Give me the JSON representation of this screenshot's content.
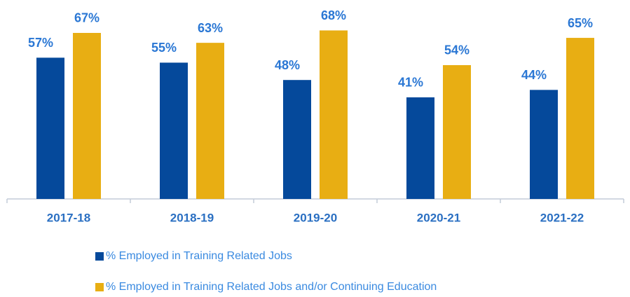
{
  "chart_data": {
    "type": "bar",
    "categories": [
      "2017-18",
      "2018-19",
      "2019-20",
      "2020-21",
      "2021-22"
    ],
    "series": [
      {
        "name": "% Employed in Training Related Jobs",
        "color": "#05499b",
        "values": [
          57,
          55,
          48,
          41,
          44
        ],
        "value_labels": [
          "57%",
          "55%",
          "48%",
          "41%",
          "44%"
        ]
      },
      {
        "name": "% Employed in Training Related Jobs and/or Continuing Education",
        "color": "#e8ae13",
        "values": [
          67,
          63,
          68,
          54,
          65
        ],
        "value_labels": [
          "67%",
          "63%",
          "68%",
          "54%",
          "65%"
        ]
      }
    ],
    "ylim": [
      0,
      80
    ],
    "legend": "bottom"
  }
}
